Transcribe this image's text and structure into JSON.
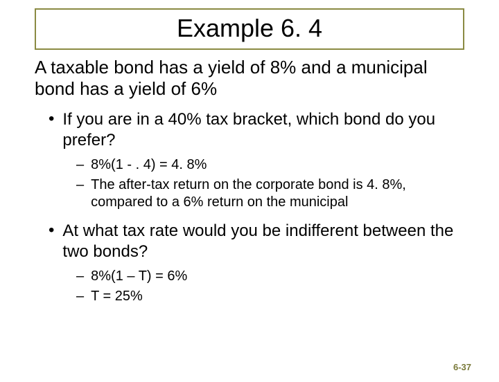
{
  "title": "Example 6. 4",
  "intro": "A taxable bond has a yield of 8% and a municipal bond has a yield of 6%",
  "bullets": [
    {
      "text": "If you are in a 40% tax bracket, which bond do you prefer?",
      "subs": [
        "8%(1 - . 4) = 4. 8%",
        "The after-tax return on the corporate bond is 4. 8%, compared to a 6% return on the municipal"
      ]
    },
    {
      "text": "At what tax rate would you be indifferent between the two bonds?",
      "subs": [
        "8%(1 – T) = 6%",
        "T = 25%"
      ]
    }
  ],
  "page_number": "6-37",
  "colors": {
    "title_border": "#8a8a42",
    "page_num": "#7a7a3a",
    "text": "#000000",
    "background": "#ffffff"
  }
}
